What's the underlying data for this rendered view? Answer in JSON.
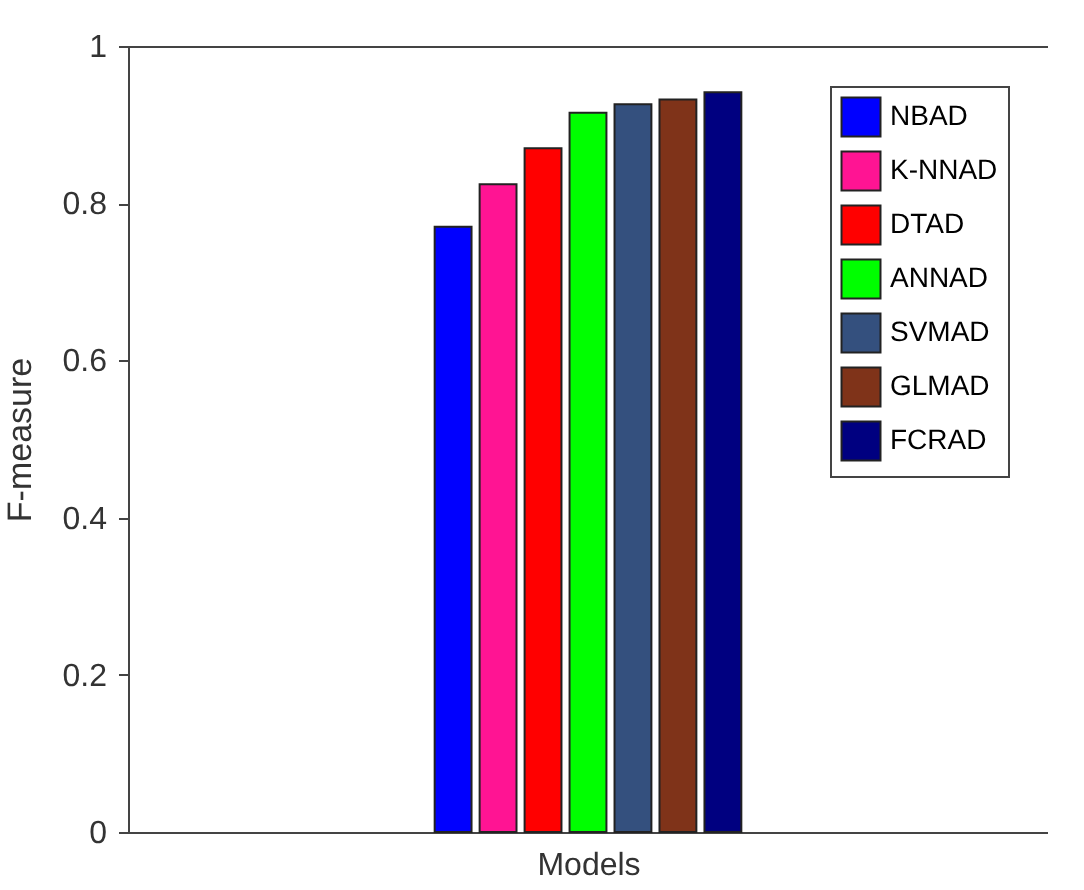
{
  "chart_data": {
    "type": "bar",
    "xlabel": "Models",
    "ylabel": "F-measure",
    "categories": [
      null
    ],
    "series": [
      {
        "name": "NBAD",
        "color": "#0000ff",
        "values": [
          0.77
        ]
      },
      {
        "name": "K-NNAD",
        "color": "#ff1493",
        "values": [
          0.824
        ]
      },
      {
        "name": "DTAD",
        "color": "#ff0000",
        "values": [
          0.87
        ]
      },
      {
        "name": "ANNAD",
        "color": "#00ff00",
        "values": [
          0.915
        ]
      },
      {
        "name": "SVMAD",
        "color": "#34507e",
        "values": [
          0.926
        ]
      },
      {
        "name": "GLMAD",
        "color": "#7f3319",
        "values": [
          0.932
        ]
      },
      {
        "name": "FCRAD",
        "color": "#000080",
        "values": [
          0.941
        ]
      }
    ],
    "ylim": [
      0,
      1
    ],
    "yticks": [
      0,
      0.2,
      0.4,
      0.6,
      0.8,
      1
    ],
    "grid": false,
    "legend": "top right"
  }
}
